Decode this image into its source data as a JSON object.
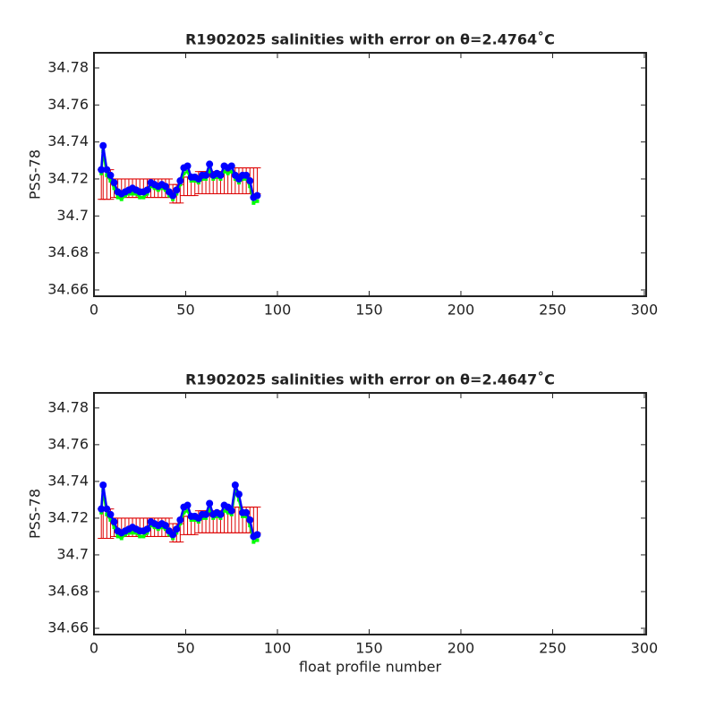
{
  "chart_data": [
    {
      "type": "line",
      "title": "R1902025 salinities with error on θ=2.4764˚C",
      "ylabel": "PSS-78",
      "xlim": [
        0,
        301
      ],
      "xticks": [
        0,
        50,
        100,
        150,
        200,
        250,
        300
      ],
      "ylim": [
        34.6566,
        34.7882
      ],
      "yticks": [
        34.66,
        34.68,
        34.7,
        34.72,
        34.74,
        34.76,
        34.78
      ],
      "x": [
        4,
        5,
        7,
        9,
        11,
        13,
        15,
        17,
        19,
        21,
        23,
        25,
        27,
        29,
        31,
        33,
        35,
        37,
        39,
        41,
        43,
        45,
        47,
        49,
        51,
        53,
        55,
        57,
        59,
        61,
        63,
        65,
        67,
        69,
        71,
        73,
        75,
        77,
        79,
        81,
        83,
        85,
        87,
        89
      ],
      "series": [
        {
          "color": "#00ff00",
          "values": [
            34.723,
            34.735,
            34.722,
            34.719,
            34.715,
            34.71,
            34.709,
            34.711,
            34.712,
            34.712,
            34.712,
            34.71,
            34.71,
            34.712,
            34.716,
            34.715,
            34.714,
            34.715,
            34.714,
            34.711,
            34.709,
            34.712,
            34.717,
            34.723,
            34.724,
            34.719,
            34.719,
            34.718,
            34.72,
            34.72,
            34.725,
            34.72,
            34.721,
            34.72,
            34.724,
            34.723,
            34.724,
            34.72,
            34.718,
            34.72,
            34.72,
            34.716,
            34.707,
            34.708
          ]
        },
        {
          "color": "#0000ff",
          "markers": true,
          "values": [
            34.725,
            34.738,
            34.725,
            34.722,
            34.718,
            34.713,
            34.712,
            34.713,
            34.714,
            34.715,
            34.714,
            34.713,
            34.713,
            34.714,
            34.718,
            34.717,
            34.716,
            34.717,
            34.716,
            34.713,
            34.711,
            34.714,
            34.719,
            34.726,
            34.727,
            34.721,
            34.721,
            34.72,
            34.722,
            34.722,
            34.728,
            34.722,
            34.723,
            34.722,
            34.727,
            34.726,
            34.727,
            34.722,
            34.72,
            34.722,
            34.722,
            34.719,
            34.71,
            34.711
          ]
        }
      ],
      "errorbars": {
        "color": "#dd0000",
        "values": [
          34.717,
          34.717,
          34.717,
          34.717,
          34.715,
          34.715,
          34.715,
          34.715,
          34.715,
          34.715,
          34.715,
          34.715,
          34.715,
          34.715,
          34.715,
          34.715,
          34.715,
          34.715,
          34.715,
          34.715,
          34.712,
          34.712,
          34.712,
          34.716,
          34.716,
          34.716,
          34.716,
          34.718,
          34.718,
          34.718,
          34.718,
          34.718,
          34.718,
          34.718,
          34.718,
          34.718,
          34.718,
          34.719,
          34.719,
          34.719,
          34.719,
          34.719,
          34.719,
          34.719
        ],
        "errors": [
          0.008,
          0.008,
          0.008,
          0.008,
          0.005,
          0.005,
          0.005,
          0.005,
          0.005,
          0.005,
          0.005,
          0.005,
          0.005,
          0.005,
          0.005,
          0.005,
          0.005,
          0.005,
          0.005,
          0.005,
          0.005,
          0.005,
          0.005,
          0.005,
          0.005,
          0.005,
          0.005,
          0.006,
          0.006,
          0.006,
          0.006,
          0.006,
          0.006,
          0.006,
          0.006,
          0.006,
          0.006,
          0.007,
          0.007,
          0.007,
          0.007,
          0.007,
          0.007,
          0.007
        ]
      }
    },
    {
      "type": "line",
      "title": "R1902025 salinities with error on θ=2.4647˚C",
      "ylabel": "PSS-78",
      "xlabel": "float profile number",
      "xlim": [
        0,
        301
      ],
      "xticks": [
        0,
        50,
        100,
        150,
        200,
        250,
        300
      ],
      "ylim": [
        34.6566,
        34.7882
      ],
      "yticks": [
        34.66,
        34.68,
        34.7,
        34.72,
        34.74,
        34.76,
        34.78
      ],
      "x": [
        4,
        5,
        7,
        9,
        11,
        13,
        15,
        17,
        19,
        21,
        23,
        25,
        27,
        29,
        31,
        33,
        35,
        37,
        39,
        41,
        43,
        45,
        47,
        49,
        51,
        53,
        55,
        57,
        59,
        61,
        63,
        65,
        67,
        69,
        71,
        73,
        75,
        77,
        79,
        81,
        83,
        85,
        87,
        89
      ],
      "series": [
        {
          "color": "#00ff00",
          "values": [
            34.723,
            34.735,
            34.722,
            34.719,
            34.715,
            34.71,
            34.709,
            34.711,
            34.712,
            34.712,
            34.712,
            34.71,
            34.71,
            34.712,
            34.716,
            34.715,
            34.714,
            34.715,
            34.714,
            34.711,
            34.709,
            34.712,
            34.717,
            34.723,
            34.724,
            34.719,
            34.719,
            34.718,
            34.72,
            34.72,
            34.725,
            34.72,
            34.721,
            34.72,
            34.724,
            34.723,
            34.722,
            34.735,
            34.73,
            34.721,
            34.721,
            34.716,
            34.707,
            34.708
          ]
        },
        {
          "color": "#0000ff",
          "markers": true,
          "values": [
            34.725,
            34.738,
            34.725,
            34.722,
            34.718,
            34.713,
            34.712,
            34.713,
            34.714,
            34.715,
            34.714,
            34.713,
            34.713,
            34.714,
            34.718,
            34.717,
            34.716,
            34.717,
            34.716,
            34.713,
            34.711,
            34.714,
            34.719,
            34.726,
            34.727,
            34.721,
            34.721,
            34.72,
            34.722,
            34.722,
            34.728,
            34.722,
            34.723,
            34.722,
            34.727,
            34.726,
            34.724,
            34.738,
            34.733,
            34.723,
            34.723,
            34.719,
            34.71,
            34.711
          ]
        }
      ],
      "errorbars": {
        "color": "#dd0000",
        "values": [
          34.717,
          34.717,
          34.717,
          34.717,
          34.715,
          34.715,
          34.715,
          34.715,
          34.715,
          34.715,
          34.715,
          34.715,
          34.715,
          34.715,
          34.715,
          34.715,
          34.715,
          34.715,
          34.715,
          34.715,
          34.712,
          34.712,
          34.712,
          34.716,
          34.716,
          34.716,
          34.716,
          34.718,
          34.718,
          34.718,
          34.718,
          34.718,
          34.718,
          34.718,
          34.718,
          34.718,
          34.718,
          34.719,
          34.719,
          34.719,
          34.719,
          34.719,
          34.719,
          34.719
        ],
        "errors": [
          0.008,
          0.008,
          0.008,
          0.008,
          0.005,
          0.005,
          0.005,
          0.005,
          0.005,
          0.005,
          0.005,
          0.005,
          0.005,
          0.005,
          0.005,
          0.005,
          0.005,
          0.005,
          0.005,
          0.005,
          0.005,
          0.005,
          0.005,
          0.005,
          0.005,
          0.005,
          0.005,
          0.006,
          0.006,
          0.006,
          0.006,
          0.006,
          0.006,
          0.006,
          0.006,
          0.006,
          0.006,
          0.007,
          0.007,
          0.007,
          0.007,
          0.007,
          0.007,
          0.007
        ]
      }
    }
  ]
}
